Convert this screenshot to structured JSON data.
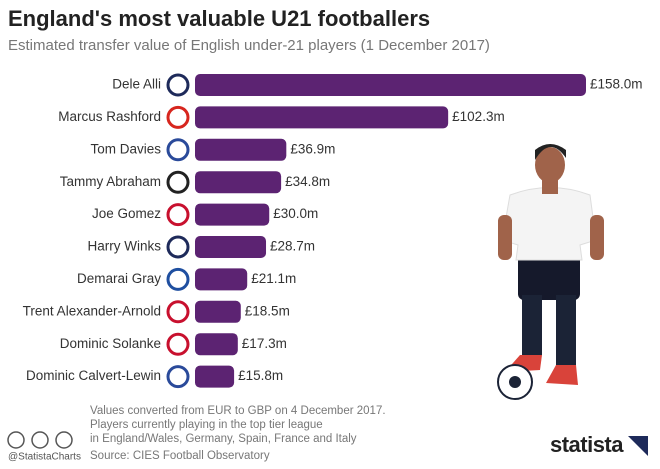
{
  "chart_data": {
    "type": "bar",
    "orientation": "horizontal",
    "title": "England's most valuable U21 footballers",
    "subtitle": "Estimated transfer value of English under-21 players (1 December 2017)",
    "categories": [
      "Dele Alli",
      "Marcus Rashford",
      "Tom Davies",
      "Tammy Abraham",
      "Joe Gomez",
      "Harry Winks",
      "Demarai Gray",
      "Trent Alexander-Arnold",
      "Dominic Solanke",
      "Dominic Calvert-Lewin"
    ],
    "values": [
      158.0,
      102.3,
      36.9,
      34.8,
      30.0,
      28.7,
      21.1,
      18.5,
      17.3,
      15.8
    ],
    "value_labels": [
      "£158.0m",
      "£102.3m",
      "£36.9m",
      "£34.8m",
      "£30.0m",
      "£28.7m",
      "£21.1m",
      "£18.5m",
      "£17.3m",
      "£15.8m"
    ],
    "color": "#5c2372",
    "notes": [
      "Values converted from EUR to GBP on 4 December 2017.",
      "Players currently playing in the top tier league",
      "in England/Wales, Germany, Spain, France and Italy"
    ],
    "source": "Source: CIES Football Observatory",
    "credit": "@StatistaCharts",
    "brand": "statista"
  }
}
